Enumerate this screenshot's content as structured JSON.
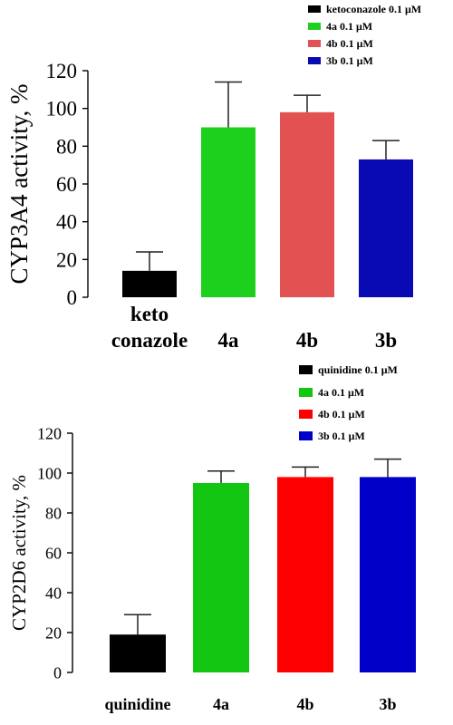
{
  "chart_data": [
    {
      "type": "bar",
      "ylabel": "CYP3A4 activity, %",
      "ylim": [
        0,
        120
      ],
      "yticks": [
        "0",
        "20",
        "40",
        "60",
        "80",
        "100",
        "120"
      ],
      "categories": [
        "keto\nconazole",
        "4a",
        "4b",
        "3b"
      ],
      "values": [
        14,
        90,
        98,
        73
      ],
      "errors": [
        10,
        24,
        9,
        10
      ],
      "colors": [
        "#000000",
        "#1ed01e",
        "#e35252",
        "#0a0ab4"
      ],
      "legend": [
        "ketoconazole 0.1 μM",
        "4a 0.1 μM",
        "4b 0.1 μM",
        "3b 0.1 μM"
      ],
      "legend_position": "top-right",
      "grid": false
    },
    {
      "type": "bar",
      "ylabel": "CYP2D6 activity, %",
      "ylim": [
        0,
        120
      ],
      "yticks": [
        "0",
        "20",
        "40",
        "60",
        "80",
        "100",
        "120"
      ],
      "categories": [
        "quinidine",
        "4a",
        "4b",
        "3b"
      ],
      "values": [
        19,
        95,
        98,
        98
      ],
      "errors": [
        10,
        6,
        5,
        9
      ],
      "colors": [
        "#000000",
        "#12c612",
        "#ff0000",
        "#0000c8"
      ],
      "legend": [
        "quinidine 0.1 μM",
        "4a 0.1 μM",
        "4b 0.1 μM",
        "3b 0.1 μM"
      ],
      "legend_position": "top-right",
      "grid": false
    }
  ]
}
